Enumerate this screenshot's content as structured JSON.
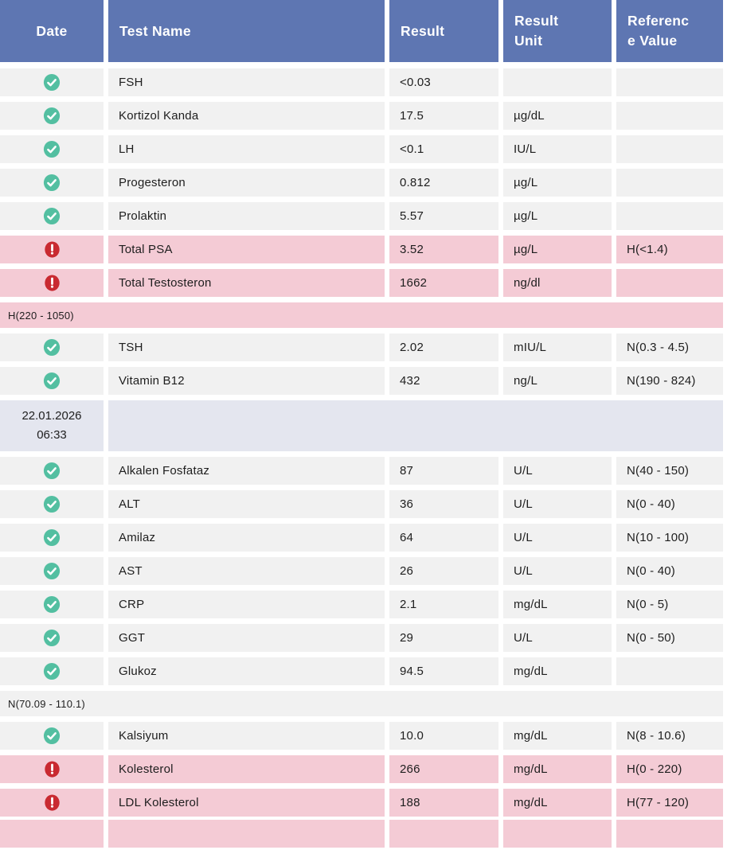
{
  "theme": {
    "header_bg": "#5e76b2",
    "row_bg": "#f1f1f1",
    "abnormal_bg": "#f4cbd5",
    "date_bg": "#e4e6ef",
    "ok_icon_color": "#53bfa1",
    "alert_icon_color": "#c92a31",
    "icons": {
      "ok": "check-icon",
      "high": "exclamation-icon"
    }
  },
  "table": {
    "columns": [
      {
        "label": "Date"
      },
      {
        "label": "Test Name"
      },
      {
        "label": "Result"
      },
      {
        "label": "Result\nUnit"
      },
      {
        "label": "Referenc\ne Value"
      }
    ],
    "rows": [
      {
        "type": "test",
        "status": "ok",
        "name": "FSH",
        "result": "<0.03",
        "unit": "",
        "reference": ""
      },
      {
        "type": "test",
        "status": "ok",
        "name": "Kortizol Kanda",
        "result": "17.5",
        "unit": "µg/dL",
        "reference": ""
      },
      {
        "type": "test",
        "status": "ok",
        "name": "LH",
        "result": "<0.1",
        "unit": "IU/L",
        "reference": ""
      },
      {
        "type": "test",
        "status": "ok",
        "name": "Progesteron",
        "result": "0.812",
        "unit": "µg/L",
        "reference": ""
      },
      {
        "type": "test",
        "status": "ok",
        "name": "Prolaktin",
        "result": "5.57",
        "unit": "µg/L",
        "reference": ""
      },
      {
        "type": "test",
        "status": "high",
        "name": "Total PSA",
        "result": "3.52",
        "unit": "µg/L",
        "reference": "H(<1.4)"
      },
      {
        "type": "test",
        "status": "high",
        "name": "Total Testosteron",
        "result": "1662",
        "unit": "ng/dl",
        "reference": ""
      },
      {
        "type": "ref-note",
        "tone": "abnormal",
        "text": "H(220 - 1050)"
      },
      {
        "type": "test",
        "status": "ok",
        "name": "TSH",
        "result": "2.02",
        "unit": "mIU/L",
        "reference": "N(0.3 - 4.5)"
      },
      {
        "type": "test",
        "status": "ok",
        "name": "Vitamin B12",
        "result": "432",
        "unit": "ng/L",
        "reference": "N(190 - 824)"
      },
      {
        "type": "date",
        "text": "22.01.2026\n06:33"
      },
      {
        "type": "test",
        "status": "ok",
        "name": "Alkalen Fosfataz",
        "result": "87",
        "unit": "U/L",
        "reference": "N(40 - 150)"
      },
      {
        "type": "test",
        "status": "ok",
        "name": "ALT",
        "result": "36",
        "unit": "U/L",
        "reference": "N(0 - 40)"
      },
      {
        "type": "test",
        "status": "ok",
        "name": "Amilaz",
        "result": "64",
        "unit": "U/L",
        "reference": "N(10 - 100)"
      },
      {
        "type": "test",
        "status": "ok",
        "name": "AST",
        "result": "26",
        "unit": "U/L",
        "reference": "N(0 - 40)"
      },
      {
        "type": "test",
        "status": "ok",
        "name": "CRP",
        "result": "2.1",
        "unit": "mg/dL",
        "reference": "N(0 - 5)"
      },
      {
        "type": "test",
        "status": "ok",
        "name": "GGT",
        "result": "29",
        "unit": "U/L",
        "reference": "N(0 - 50)"
      },
      {
        "type": "test",
        "status": "ok",
        "name": "Glukoz",
        "result": "94.5",
        "unit": "mg/dL",
        "reference": ""
      },
      {
        "type": "ref-note",
        "tone": "normal",
        "text": "N(70.09 - 110.1)"
      },
      {
        "type": "test",
        "status": "ok",
        "name": "Kalsiyum",
        "result": "10.0",
        "unit": "mg/dL",
        "reference": "N(8 - 10.6)"
      },
      {
        "type": "test",
        "status": "high",
        "name": "Kolesterol",
        "result": "266",
        "unit": "mg/dL",
        "reference": "H(0 - 220)"
      },
      {
        "type": "test",
        "status": "high",
        "name": "LDL Kolesterol",
        "result": "188",
        "unit": "mg/dL",
        "reference": "H(77 - 120)"
      },
      {
        "type": "test",
        "status": "high",
        "partial": true,
        "name": "",
        "result": "",
        "unit": "",
        "reference": ""
      }
    ]
  }
}
